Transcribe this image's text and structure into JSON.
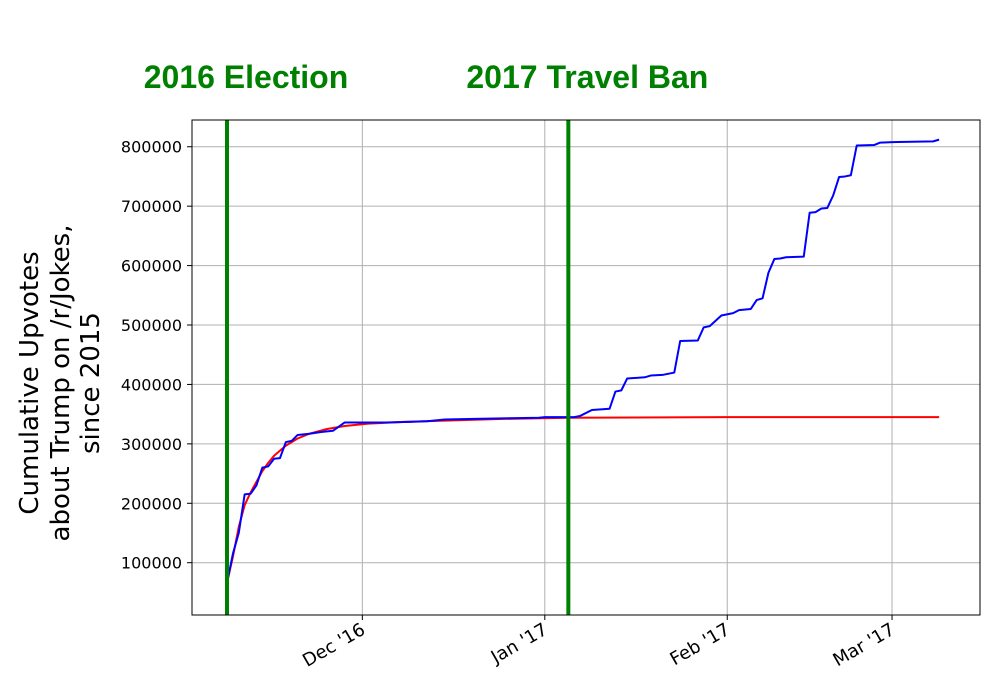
{
  "chart_data": {
    "type": "line",
    "title": "",
    "xlabel": "",
    "ylabel_lines": [
      "Cumulative Upvotes",
      "about Trump on /r/Jokes,",
      "since 2015"
    ],
    "x_axis": {
      "type": "date",
      "range": [
        "2016-11-08",
        "2017-03-10"
      ],
      "ticks": [
        {
          "date": "2016-12-01",
          "label": "Dec '16"
        },
        {
          "date": "2017-01-01",
          "label": "Jan '17"
        },
        {
          "date": "2017-02-01",
          "label": "Feb '17"
        },
        {
          "date": "2017-03-01",
          "label": "Mar '17"
        }
      ]
    },
    "y_axis": {
      "range": [
        12000,
        845000
      ],
      "ticks": [
        100000,
        200000,
        300000,
        400000,
        500000,
        600000,
        700000,
        800000
      ]
    },
    "grid": true,
    "annotations": [
      {
        "label": "2016 Election",
        "date": "2016-11-08",
        "color": "#008000"
      },
      {
        "label": "2017 Travel Ban",
        "date": "2017-01-05",
        "color": "#008000"
      }
    ],
    "series": [
      {
        "color": "#0000ff",
        "points": [
          [
            "2016-11-08",
            66000
          ],
          [
            "2016-11-09",
            115000
          ],
          [
            "2016-11-10",
            150000
          ],
          [
            "2016-11-11",
            215000
          ],
          [
            "2016-11-12",
            216000
          ],
          [
            "2016-11-13",
            230000
          ],
          [
            "2016-11-14",
            260000
          ],
          [
            "2016-11-15",
            262000
          ],
          [
            "2016-11-16",
            275000
          ],
          [
            "2016-11-17",
            276000
          ],
          [
            "2016-11-18",
            303000
          ],
          [
            "2016-11-19",
            305000
          ],
          [
            "2016-11-20",
            315000
          ],
          [
            "2016-11-22",
            317000
          ],
          [
            "2016-11-24",
            320000
          ],
          [
            "2016-11-26",
            322000
          ],
          [
            "2016-11-28",
            336000
          ],
          [
            "2016-12-05",
            336000
          ],
          [
            "2016-12-09",
            337000
          ],
          [
            "2016-12-12",
            338000
          ],
          [
            "2016-12-15",
            341000
          ],
          [
            "2016-12-20",
            342000
          ],
          [
            "2016-12-31",
            344000
          ],
          [
            "2017-01-01",
            345000
          ],
          [
            "2017-01-06",
            345000
          ],
          [
            "2017-01-07",
            347000
          ],
          [
            "2017-01-09",
            357000
          ],
          [
            "2017-01-12",
            359000
          ],
          [
            "2017-01-13",
            388000
          ],
          [
            "2017-01-14",
            390000
          ],
          [
            "2017-01-15",
            410000
          ],
          [
            "2017-01-18",
            412000
          ],
          [
            "2017-01-19",
            415000
          ],
          [
            "2017-01-21",
            416000
          ],
          [
            "2017-01-23",
            420000
          ],
          [
            "2017-01-24",
            473000
          ],
          [
            "2017-01-27",
            474000
          ],
          [
            "2017-01-28",
            496000
          ],
          [
            "2017-01-29",
            498000
          ],
          [
            "2017-01-31",
            516000
          ],
          [
            "2017-02-02",
            520000
          ],
          [
            "2017-02-03",
            525000
          ],
          [
            "2017-02-05",
            527000
          ],
          [
            "2017-02-06",
            542000
          ],
          [
            "2017-02-07",
            545000
          ],
          [
            "2017-02-08",
            588000
          ],
          [
            "2017-02-09",
            611000
          ],
          [
            "2017-02-10",
            612000
          ],
          [
            "2017-02-11",
            614000
          ],
          [
            "2017-02-14",
            615000
          ],
          [
            "2017-02-15",
            689000
          ],
          [
            "2017-02-16",
            690000
          ],
          [
            "2017-02-17",
            696000
          ],
          [
            "2017-02-18",
            697000
          ],
          [
            "2017-02-19",
            718000
          ],
          [
            "2017-02-20",
            749000
          ],
          [
            "2017-02-21",
            750000
          ],
          [
            "2017-02-22",
            752000
          ],
          [
            "2017-02-23",
            802000
          ],
          [
            "2017-02-26",
            803000
          ],
          [
            "2017-02-27",
            807000
          ],
          [
            "2017-03-02",
            808000
          ],
          [
            "2017-03-08",
            809000
          ],
          [
            "2017-03-09",
            812000
          ]
        ]
      },
      {
        "color": "#ff0000",
        "points": [
          [
            "2016-11-08",
            66000
          ],
          [
            "2016-11-09",
            110000
          ],
          [
            "2016-11-10",
            160000
          ],
          [
            "2016-11-11",
            197000
          ],
          [
            "2016-11-12",
            218000
          ],
          [
            "2016-11-13",
            236000
          ],
          [
            "2016-11-14",
            254000
          ],
          [
            "2016-11-15",
            268000
          ],
          [
            "2016-11-16",
            280000
          ],
          [
            "2016-11-18",
            297000
          ],
          [
            "2016-11-20",
            309000
          ],
          [
            "2016-11-22",
            317000
          ],
          [
            "2016-11-25",
            325000
          ],
          [
            "2016-11-28",
            330000
          ],
          [
            "2016-12-02",
            334000
          ],
          [
            "2016-12-08",
            337000
          ],
          [
            "2016-12-15",
            339000
          ],
          [
            "2016-12-25",
            342000
          ],
          [
            "2017-01-05",
            344000
          ],
          [
            "2017-02-01",
            345000
          ],
          [
            "2017-03-09",
            345000
          ]
        ]
      }
    ]
  }
}
